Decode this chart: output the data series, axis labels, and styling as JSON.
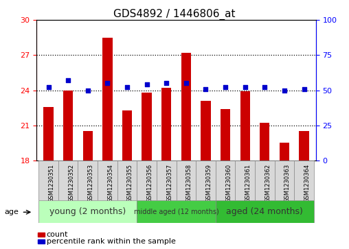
{
  "title": "GDS4892 / 1446806_at",
  "samples": [
    "GSM1230351",
    "GSM1230352",
    "GSM1230353",
    "GSM1230354",
    "GSM1230355",
    "GSM1230356",
    "GSM1230357",
    "GSM1230358",
    "GSM1230359",
    "GSM1230360",
    "GSM1230361",
    "GSM1230362",
    "GSM1230363",
    "GSM1230364"
  ],
  "counts": [
    22.6,
    24.0,
    20.5,
    28.5,
    22.3,
    23.8,
    24.2,
    27.2,
    23.1,
    22.4,
    23.9,
    21.2,
    19.5,
    20.5
  ],
  "percentile_ranks": [
    52,
    57,
    50,
    55,
    52,
    54,
    55,
    55,
    51,
    52,
    52,
    52,
    50,
    51
  ],
  "ylim_left": [
    18,
    30
  ],
  "ylim_right": [
    0,
    100
  ],
  "yticks_left": [
    18,
    21,
    24,
    27,
    30
  ],
  "yticks_right": [
    0,
    25,
    50,
    75,
    100
  ],
  "bar_color": "#cc0000",
  "dot_color": "#0000cc",
  "group_labels": [
    "young (2 months)",
    "middle aged (12 months)",
    "aged (24 months)"
  ],
  "group_ranges": [
    [
      0,
      5
    ],
    [
      5,
      9
    ],
    [
      9,
      14
    ]
  ],
  "group_colors_bg": [
    "#ccffcc",
    "#44cc44",
    "#33cc33"
  ],
  "legend_count_label": "count",
  "legend_percentile_label": "percentile rank within the sample",
  "age_label": "age",
  "title_fontsize": 11,
  "tick_fontsize": 8,
  "bar_width": 0.5,
  "grid_lines": [
    21,
    24,
    27
  ],
  "dotted_line_color": "black"
}
